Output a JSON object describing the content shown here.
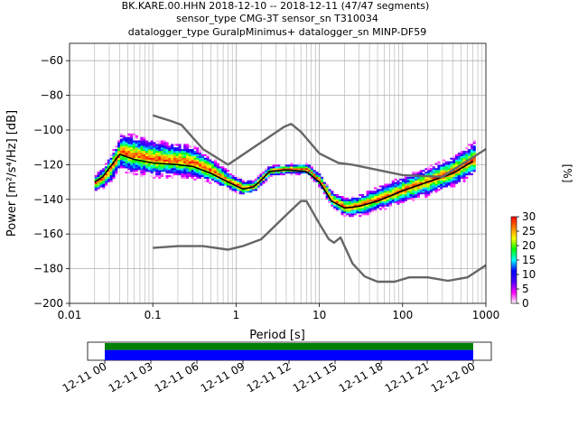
{
  "chart_data": {
    "type": "heatmap",
    "title_lines": [
      "BK.KARE.00.HHN   2018-12-10 -- 2018-12-11  (47/47 segments)",
      "sensor_type CMG-3T sensor_sn T310034",
      "datalogger_type GuralpMinimus+ datalogger_sn MINP-DF59"
    ],
    "xlabel": "Period [s]",
    "ylabel": "Power [m²/s⁴/Hz] [dB]",
    "x_scale": "log",
    "xlim": [
      0.01,
      1000
    ],
    "ylim": [
      -200,
      -50
    ],
    "x_ticks": [
      {
        "value": 0.01,
        "label": "0.01"
      },
      {
        "value": 0.1,
        "label": "0.1"
      },
      {
        "value": 1,
        "label": "1"
      },
      {
        "value": 10,
        "label": "10"
      },
      {
        "value": 100,
        "label": "100"
      },
      {
        "value": 1000,
        "label": "1000"
      }
    ],
    "y_ticks": [
      {
        "value": -60,
        "label": "−60"
      },
      {
        "value": -80,
        "label": "−80"
      },
      {
        "value": -100,
        "label": "−100"
      },
      {
        "value": -120,
        "label": "−120"
      },
      {
        "value": -140,
        "label": "−140"
      },
      {
        "value": -160,
        "label": "−160"
      },
      {
        "value": -180,
        "label": "−180"
      },
      {
        "value": -200,
        "label": "−200"
      }
    ],
    "grid": true,
    "colorbar": {
      "label": "[%]",
      "range": [
        0,
        30
      ],
      "ticks": [
        {
          "value": 0,
          "label": "0"
        },
        {
          "value": 5,
          "label": "5"
        },
        {
          "value": 10,
          "label": "10"
        },
        {
          "value": 15,
          "label": "15"
        },
        {
          "value": 20,
          "label": "20"
        },
        {
          "value": 25,
          "label": "25"
        },
        {
          "value": 30,
          "label": "30"
        }
      ],
      "colors": [
        "#ffffff",
        "#ff00ff",
        "#4a00ff",
        "#0000ff",
        "#00ffff",
        "#00ff00",
        "#ffff00",
        "#ff8000",
        "#ff0000"
      ]
    },
    "psd_density": {
      "period_range": [
        0.02,
        700
      ],
      "center_db": [
        {
          "period": 0.02,
          "db": -131
        },
        {
          "period": 0.025,
          "db": -128
        },
        {
          "period": 0.03,
          "db": -123
        },
        {
          "period": 0.04,
          "db": -113
        },
        {
          "period": 0.06,
          "db": -115
        },
        {
          "period": 0.1,
          "db": -117
        },
        {
          "period": 0.2,
          "db": -118
        },
        {
          "period": 0.3,
          "db": -119
        },
        {
          "period": 0.5,
          "db": -124
        },
        {
          "period": 0.8,
          "db": -130
        },
        {
          "period": 1.2,
          "db": -134
        },
        {
          "period": 1.6,
          "db": -133
        },
        {
          "period": 2.5,
          "db": -124
        },
        {
          "period": 4,
          "db": -123
        },
        {
          "period": 7,
          "db": -123
        },
        {
          "period": 10,
          "db": -130
        },
        {
          "period": 14,
          "db": -141
        },
        {
          "period": 20,
          "db": -145
        },
        {
          "period": 30,
          "db": -144
        },
        {
          "period": 50,
          "db": -140
        },
        {
          "period": 100,
          "db": -135
        },
        {
          "period": 200,
          "db": -130
        },
        {
          "period": 400,
          "db": -124
        },
        {
          "period": 700,
          "db": -117
        }
      ],
      "spread_db": [
        {
          "period": 0.02,
          "db": 5
        },
        {
          "period": 0.05,
          "db": 12
        },
        {
          "period": 0.1,
          "db": 11
        },
        {
          "period": 0.3,
          "db": 10
        },
        {
          "period": 0.7,
          "db": 6
        },
        {
          "period": 1.5,
          "db": 4
        },
        {
          "period": 4,
          "db": 3
        },
        {
          "period": 10,
          "db": 4
        },
        {
          "period": 20,
          "db": 6
        },
        {
          "period": 40,
          "db": 7
        },
        {
          "period": 100,
          "db": 8
        },
        {
          "period": 300,
          "db": 9
        },
        {
          "period": 700,
          "db": 10
        }
      ]
    },
    "series": [
      {
        "points": [
          [
            0.02,
            -130
          ],
          [
            0.025,
            -127
          ],
          [
            0.03,
            -122
          ],
          [
            0.04,
            -114
          ],
          [
            0.06,
            -117
          ],
          [
            0.1,
            -119
          ],
          [
            0.2,
            -120
          ],
          [
            0.3,
            -121
          ],
          [
            0.5,
            -125
          ],
          [
            0.8,
            -130
          ],
          [
            1.2,
            -134
          ],
          [
            1.6,
            -133
          ],
          [
            2,
            -129
          ],
          [
            2.5,
            -124
          ],
          [
            4,
            -123
          ],
          [
            7,
            -124
          ],
          [
            10,
            -130
          ],
          [
            14,
            -141
          ],
          [
            20,
            -145
          ],
          [
            30,
            -144
          ],
          [
            50,
            -141
          ],
          [
            100,
            -135
          ],
          [
            200,
            -130
          ],
          [
            400,
            -125
          ],
          [
            700,
            -118
          ]
        ]
      },
      {
        "points": [
          [
            0.1,
            -91.5
          ],
          [
            0.17,
            -95
          ],
          [
            0.22,
            -97
          ],
          [
            0.4,
            -111
          ],
          [
            0.8,
            -120
          ],
          [
            3.8,
            -98
          ],
          [
            4.6,
            -96.5
          ],
          [
            6,
            -101
          ],
          [
            10,
            -113.5
          ],
          [
            17,
            -119
          ],
          [
            25,
            -120
          ],
          [
            100,
            -126
          ],
          [
            300,
            -127
          ],
          [
            1000,
            -111
          ]
        ]
      },
      {
        "points": [
          [
            0.1,
            -168
          ],
          [
            0.2,
            -167
          ],
          [
            0.4,
            -167
          ],
          [
            0.8,
            -169
          ],
          [
            1.2,
            -167
          ],
          [
            2,
            -163
          ],
          [
            4,
            -149
          ],
          [
            6,
            -141
          ],
          [
            7,
            -141
          ],
          [
            10,
            -154
          ],
          [
            13,
            -163
          ],
          [
            15,
            -165
          ],
          [
            18,
            -162
          ],
          [
            25,
            -177
          ],
          [
            35,
            -184.5
          ],
          [
            50,
            -187.5
          ],
          [
            80,
            -187.5
          ],
          [
            120,
            -185
          ],
          [
            200,
            -185
          ],
          [
            350,
            -187
          ],
          [
            600,
            -185
          ],
          [
            1000,
            -178
          ]
        ]
      }
    ],
    "timeline": {
      "ticks": [
        "12-11 00",
        "12-11 03",
        "12-11 06",
        "12-11 09",
        "12-11 12",
        "12-11 15",
        "12-11 18",
        "12-11 21",
        "12-12 00"
      ],
      "bands": [
        {
          "color": "#008000",
          "range": [
            0,
            0.4
          ]
        },
        {
          "color": "#0000ff",
          "range": [
            0.4,
            1
          ]
        }
      ]
    }
  }
}
